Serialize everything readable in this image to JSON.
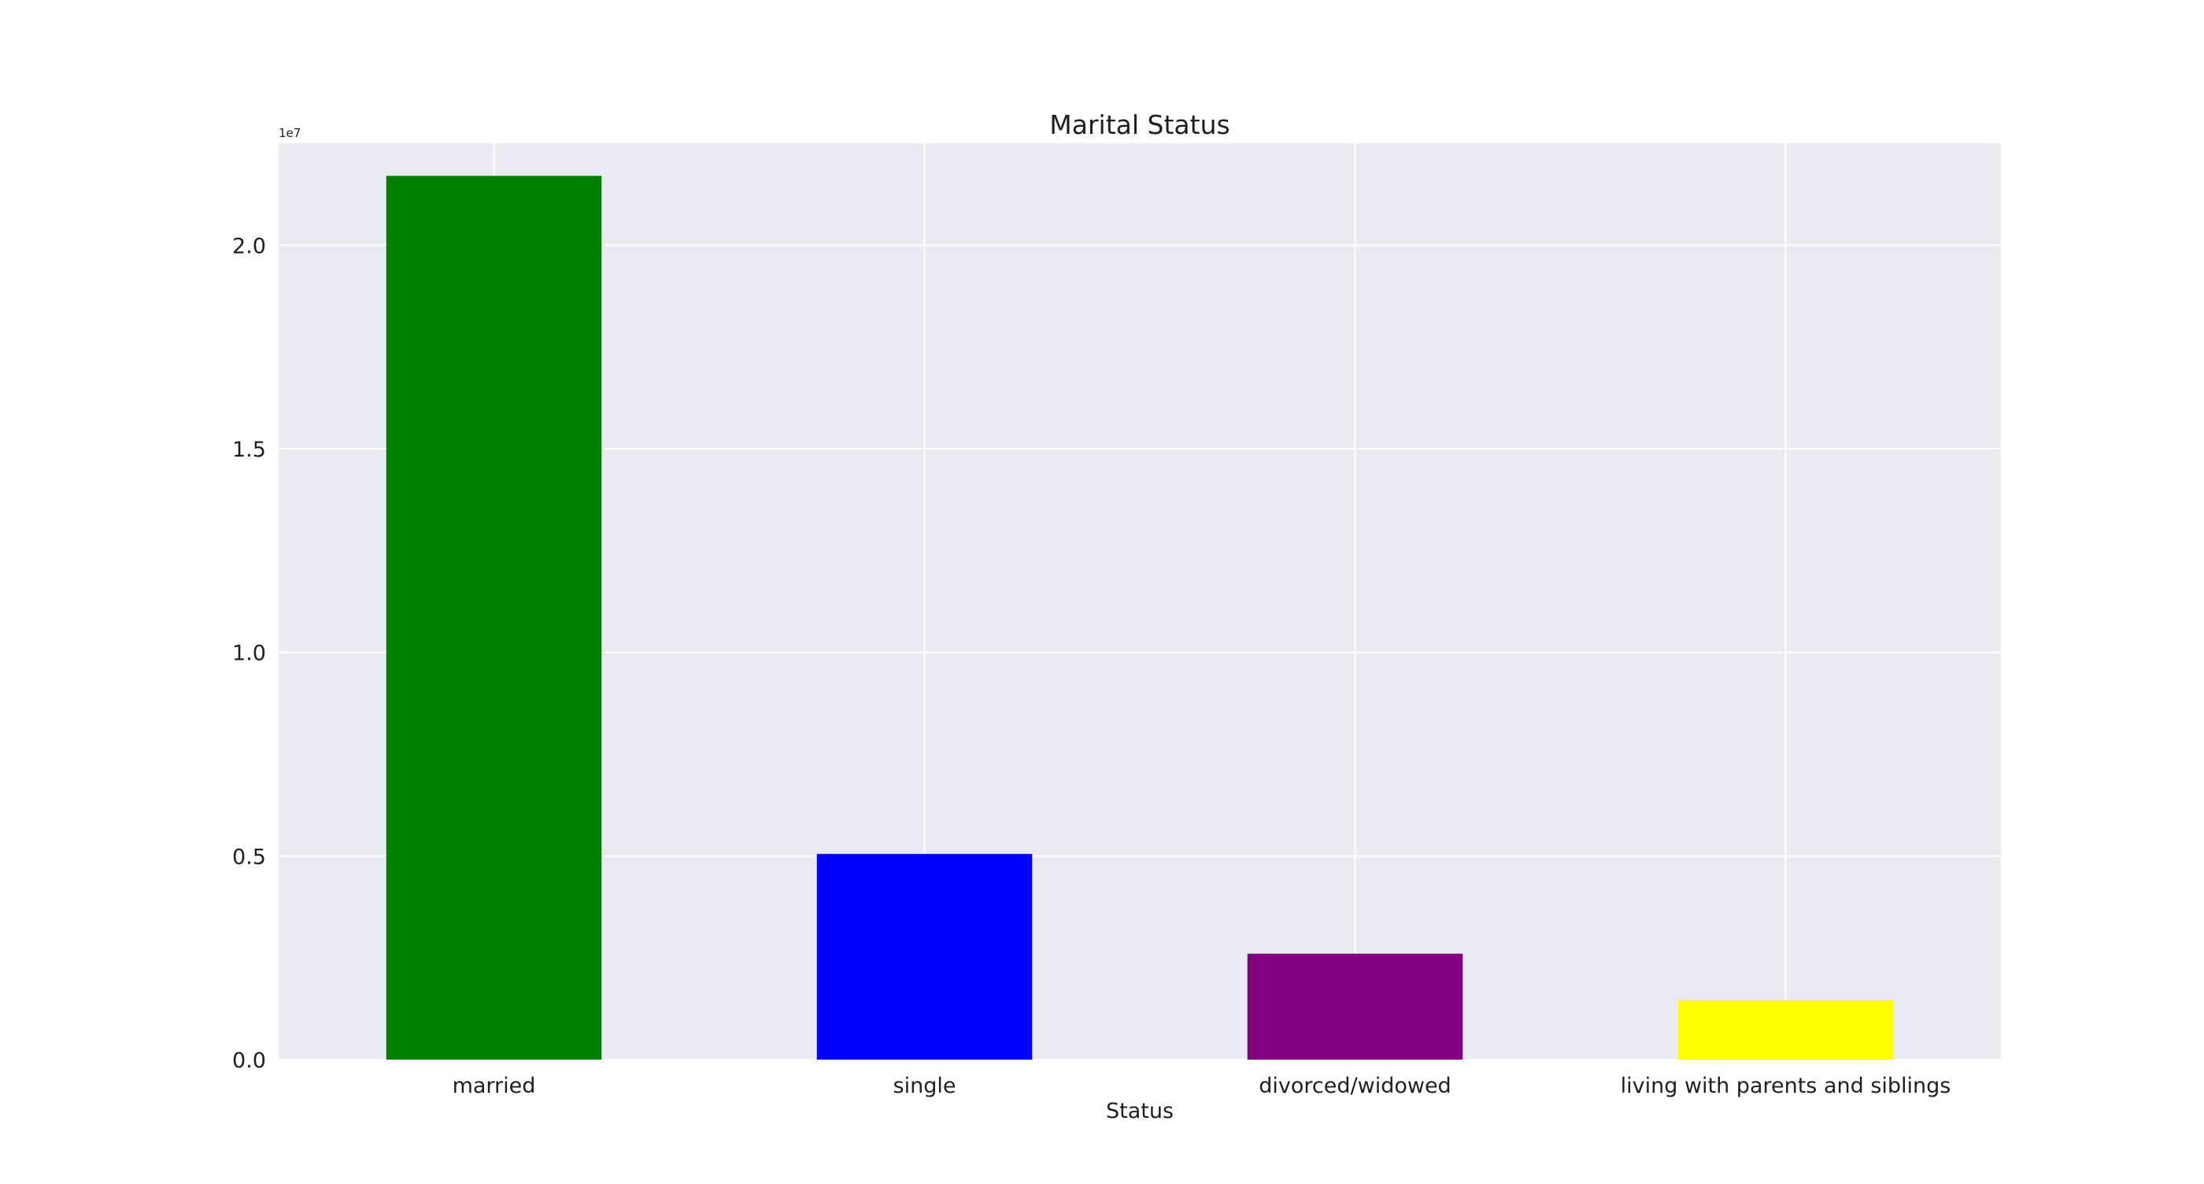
{
  "chart_data": {
    "type": "bar",
    "title": "Marital Status",
    "xlabel": "Status",
    "ylabel": "",
    "categories": [
      "married",
      "single",
      "divorced/widowed",
      "living with parents and siblings"
    ],
    "values": [
      21700000,
      5050000,
      2600000,
      1450000
    ],
    "colors": [
      "#008000",
      "#0000ff",
      "#800080",
      "#ffff00"
    ],
    "ylim": [
      0,
      22500000
    ],
    "yticks": [
      0,
      5000000,
      10000000,
      15000000,
      20000000
    ],
    "ytick_labels": [
      "0.0",
      "0.5",
      "1.0",
      "1.5",
      "2.0"
    ],
    "offset_label": "1e7",
    "grid": true,
    "background": "#eaeaf2",
    "grid_color": "#ffffff"
  }
}
